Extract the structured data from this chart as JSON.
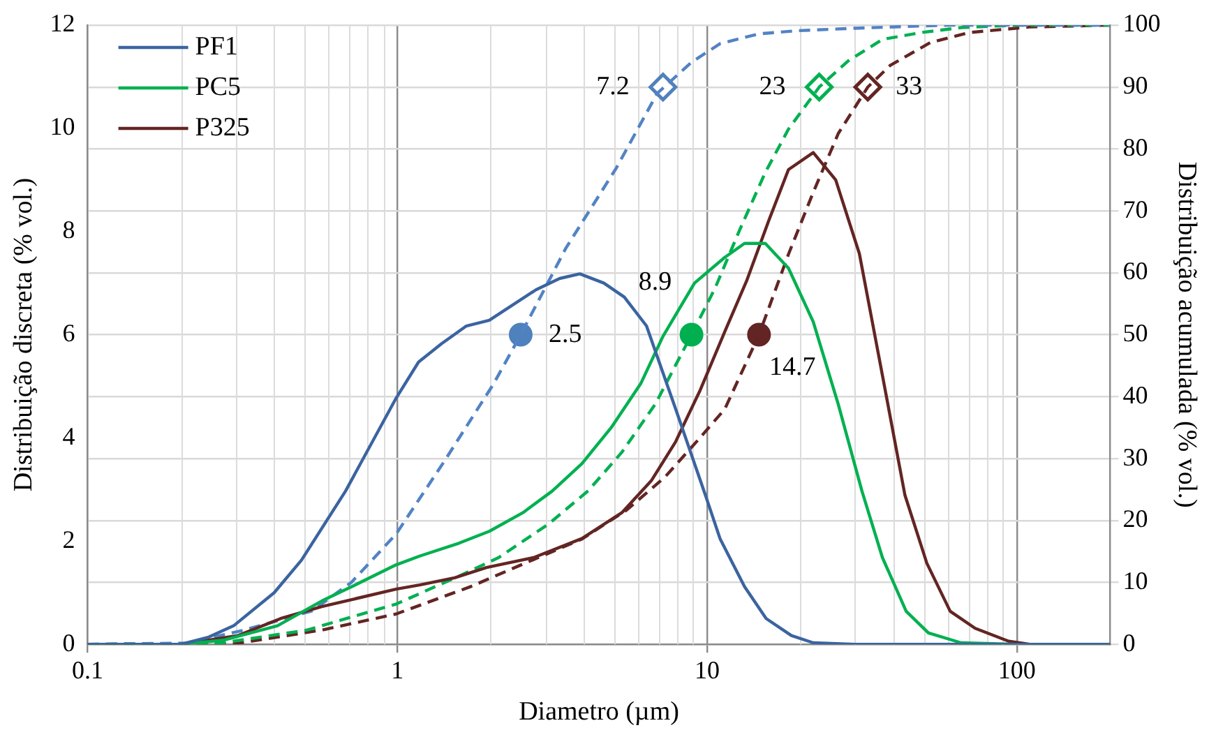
{
  "chart_data": {
    "type": "line",
    "xlabel": "Diametro (µm)",
    "ylabel": "Distribuição discreta (% vol.)",
    "y2label": "Distribuição acumulada (% vol.)",
    "log": "x",
    "xlim": [
      0.1,
      200
    ],
    "xticks": [
      0.1,
      1,
      10,
      100
    ],
    "ylim": [
      0,
      12
    ],
    "yticks": [
      0,
      2,
      4,
      6,
      8,
      10,
      12
    ],
    "y2lim": [
      0,
      100
    ],
    "y2ticks": [
      0,
      10,
      20,
      30,
      40,
      50,
      60,
      70,
      80,
      90,
      100
    ],
    "grid": true,
    "legend": "top left",
    "annotations": [
      {
        "text": "2.5",
        "x": 2.5,
        "y": 6
      },
      {
        "text": "8.9",
        "x": 8.9,
        "y": 6
      },
      {
        "text": "14.7",
        "x": 14.7,
        "y": 6
      },
      {
        "text": "7.2",
        "x": 7.2,
        "y": 10.8
      },
      {
        "text": "23",
        "x": 23,
        "y": 10.8
      },
      {
        "text": "33",
        "x": 33,
        "y": 10.8
      }
    ],
    "marker": "none",
    "line_style": "solid",
    "series": [
      {
        "name": "PF1",
        "color": "#3b64a0",
        "x": [
          0.1,
          0.2,
          0.246,
          0.296,
          0.4,
          0.49,
          0.68,
          0.99,
          1.17,
          1.39,
          1.67,
          1.98,
          2.8,
          3.34,
          3.88,
          4.64,
          5.4,
          6.37,
          7.9,
          9.87,
          11,
          13.2,
          15.5,
          18.7,
          22,
          30,
          200
        ],
        "values": [
          0,
          0,
          0.14,
          0.36,
          1.0,
          1.63,
          2.97,
          4.77,
          5.47,
          5.83,
          6.17,
          6.28,
          6.87,
          7.09,
          7.18,
          7.0,
          6.73,
          6.17,
          4.57,
          2.89,
          2.05,
          1.12,
          0.5,
          0.17,
          0.03,
          0,
          0
        ]
      },
      {
        "name": "PC5",
        "color": "#00b050",
        "x": [
          0.1,
          0.2,
          0.274,
          0.41,
          0.57,
          0.73,
          0.99,
          1.18,
          1.58,
          1.98,
          2.54,
          3.16,
          3.94,
          4.9,
          6.1,
          7.2,
          9.1,
          11.4,
          13.2,
          15.4,
          18.3,
          22,
          26.5,
          31.6,
          36.8,
          43.9,
          51.8,
          66,
          100,
          200
        ],
        "values": [
          0,
          0,
          0.08,
          0.36,
          0.84,
          1.15,
          1.54,
          1.71,
          1.96,
          2.19,
          2.55,
          2.97,
          3.5,
          4.2,
          5.05,
          5.97,
          7.0,
          7.5,
          7.77,
          7.77,
          7.29,
          6.25,
          4.65,
          2.97,
          1.68,
          0.64,
          0.22,
          0.03,
          0,
          0
        ]
      },
      {
        "name": "P325",
        "color": "#632523",
        "x": [
          0.1,
          0.2,
          0.306,
          0.42,
          0.57,
          0.99,
          1.18,
          1.53,
          1.94,
          2.75,
          3.94,
          5.3,
          6.6,
          7.9,
          9.5,
          11.4,
          13.4,
          15.8,
          18.3,
          22,
          26,
          31,
          36.8,
          43.5,
          51.2,
          60.9,
          73.3,
          94,
          110,
          200
        ],
        "values": [
          0,
          0,
          0.17,
          0.5,
          0.73,
          1.07,
          1.15,
          1.29,
          1.49,
          1.68,
          2.05,
          2.55,
          3.17,
          3.92,
          4.93,
          6.06,
          7.04,
          8.21,
          9.2,
          9.53,
          9.0,
          7.57,
          5.21,
          2.89,
          1.57,
          0.64,
          0.31,
          0.06,
          0,
          0
        ]
      },
      {
        "type": "line",
        "axis": "y2",
        "line_style": "dashed",
        "color": "#5283c4",
        "x": [
          0.1,
          0.21,
          0.32,
          0.53,
          0.71,
          0.99,
          1.41,
          2.04,
          2.5,
          3.5,
          5.1,
          6.9,
          8.9,
          11,
          14.7,
          19.6,
          30,
          60,
          200
        ],
        "values": [
          0,
          0.2,
          2.3,
          5.4,
          10,
          17.8,
          29.4,
          42,
          50,
          64,
          77,
          89,
          94,
          97,
          98.6,
          99.1,
          99.5,
          100,
          100
        ]
      },
      {
        "type": "line",
        "axis": "y2",
        "line_style": "dashed",
        "color": "#00b050",
        "x": [
          0.1,
          0.27,
          0.51,
          0.99,
          1.53,
          2.12,
          3.07,
          4.13,
          5.3,
          6.8,
          8.9,
          10.6,
          12.7,
          15.4,
          18.3,
          23,
          28.5,
          36.8,
          49,
          66,
          100,
          200
        ],
        "values": [
          0,
          0.2,
          2.3,
          6.5,
          10.7,
          14,
          19.4,
          24.8,
          31,
          38.8,
          50,
          57.5,
          66.8,
          76.2,
          83.2,
          90,
          94.2,
          97.7,
          98.8,
          99.6,
          100,
          100
        ]
      },
      {
        "type": "line",
        "axis": "y2",
        "line_style": "dashed",
        "color": "#632523",
        "x": [
          0.1,
          0.3,
          0.57,
          0.99,
          1.72,
          2.5,
          3.94,
          5.5,
          7.3,
          9.5,
          11.4,
          14.7,
          18.3,
          22,
          26.5,
          33,
          39,
          52.6,
          70,
          110,
          200
        ],
        "values": [
          0,
          0.1,
          2.3,
          4.9,
          9.3,
          12.8,
          17,
          21.7,
          27,
          33.4,
          38,
          50,
          63,
          73,
          82.5,
          90,
          93.5,
          97.2,
          98.8,
          99.7,
          100
        ]
      },
      {
        "type": "scatter",
        "axis": "y2",
        "marker": "circle",
        "x": [
          2.5,
          8.9,
          14.7
        ],
        "values": [
          50,
          50,
          50
        ],
        "colors": [
          "#4f81bd",
          "#00b050",
          "#632523"
        ]
      },
      {
        "type": "scatter",
        "axis": "y2",
        "marker": "diamond",
        "x": [
          7.2,
          23,
          33
        ],
        "values": [
          90,
          90,
          90
        ],
        "colors": [
          "#4f81bd",
          "#00b050",
          "#632523"
        ]
      }
    ]
  }
}
